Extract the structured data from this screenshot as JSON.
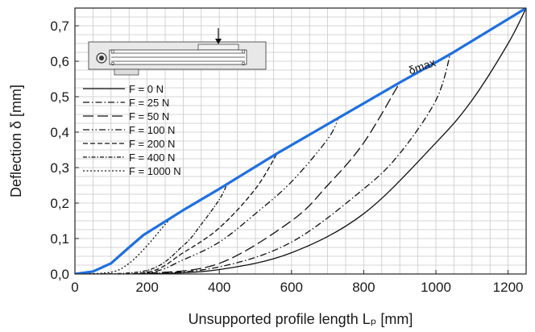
{
  "chart_data": {
    "type": "line",
    "xlabel": "Unsupported profile length Lₚ [mm]",
    "ylabel": "Deflection δ [mm]",
    "xlim": [
      0,
      1250
    ],
    "ylim": [
      0,
      0.75
    ],
    "x_ticks": [
      "0",
      "200",
      "400",
      "600",
      "800",
      "1000",
      "1200"
    ],
    "y_ticks": [
      "0,0",
      "0,1",
      "0,2",
      "0,3",
      "0,4",
      "0,5",
      "0,6",
      "0,7"
    ],
    "grid": true,
    "legend_position": "upper-left",
    "annotation": "δmax",
    "envelope_color": "#1f6fe0",
    "series": [
      {
        "name": "F = 0 N",
        "dash": "solid",
        "x": [
          0,
          200,
          400,
          600,
          800,
          1000,
          1100,
          1200,
          1250
        ],
        "y": [
          0,
          0.0002,
          0.0125,
          0.06,
          0.17,
          0.37,
          0.49,
          0.65,
          0.75
        ]
      },
      {
        "name": "F = 25 N",
        "dash": "dash-dot",
        "x": [
          0,
          200,
          400,
          600,
          800,
          900,
          1000,
          1040
        ],
        "y": [
          0,
          0.001,
          0.02,
          0.09,
          0.24,
          0.34,
          0.49,
          0.62
        ]
      },
      {
        "name": "F = 50 N",
        "dash": "long-dash",
        "x": [
          0,
          200,
          400,
          600,
          700,
          800,
          900
        ],
        "y": [
          0,
          0.002,
          0.03,
          0.15,
          0.25,
          0.37,
          0.54
        ]
      },
      {
        "name": "F = 100 N",
        "dash": "dash-dot-dot",
        "x": [
          0,
          200,
          300,
          400,
          500,
          600,
          700,
          730
        ],
        "y": [
          0,
          0.003,
          0.04,
          0.09,
          0.17,
          0.26,
          0.38,
          0.44
        ]
      },
      {
        "name": "F = 200 N",
        "dash": "short-dash",
        "x": [
          0,
          200,
          300,
          400,
          500,
          560
        ],
        "y": [
          0,
          0.005,
          0.06,
          0.13,
          0.24,
          0.34
        ]
      },
      {
        "name": "F = 400 N",
        "dash": "dense-dash-dot",
        "x": [
          0,
          200,
          300,
          350,
          400,
          420
        ],
        "y": [
          0,
          0.01,
          0.08,
          0.14,
          0.21,
          0.25
        ]
      },
      {
        "name": "F = 1000 N",
        "dash": "dotted",
        "x": [
          0,
          100,
          150,
          200,
          250,
          270
        ],
        "y": [
          0,
          0.005,
          0.03,
          0.08,
          0.14,
          0.16
        ]
      },
      {
        "name": "δmax",
        "dash": "envelope",
        "x": [
          0,
          50,
          100,
          150,
          190,
          300,
          400,
          560,
          730,
          900,
          1040,
          1250
        ],
        "y": [
          0,
          0.007,
          0.03,
          0.075,
          0.11,
          0.18,
          0.24,
          0.34,
          0.44,
          0.54,
          0.62,
          0.75
        ]
      }
    ]
  }
}
